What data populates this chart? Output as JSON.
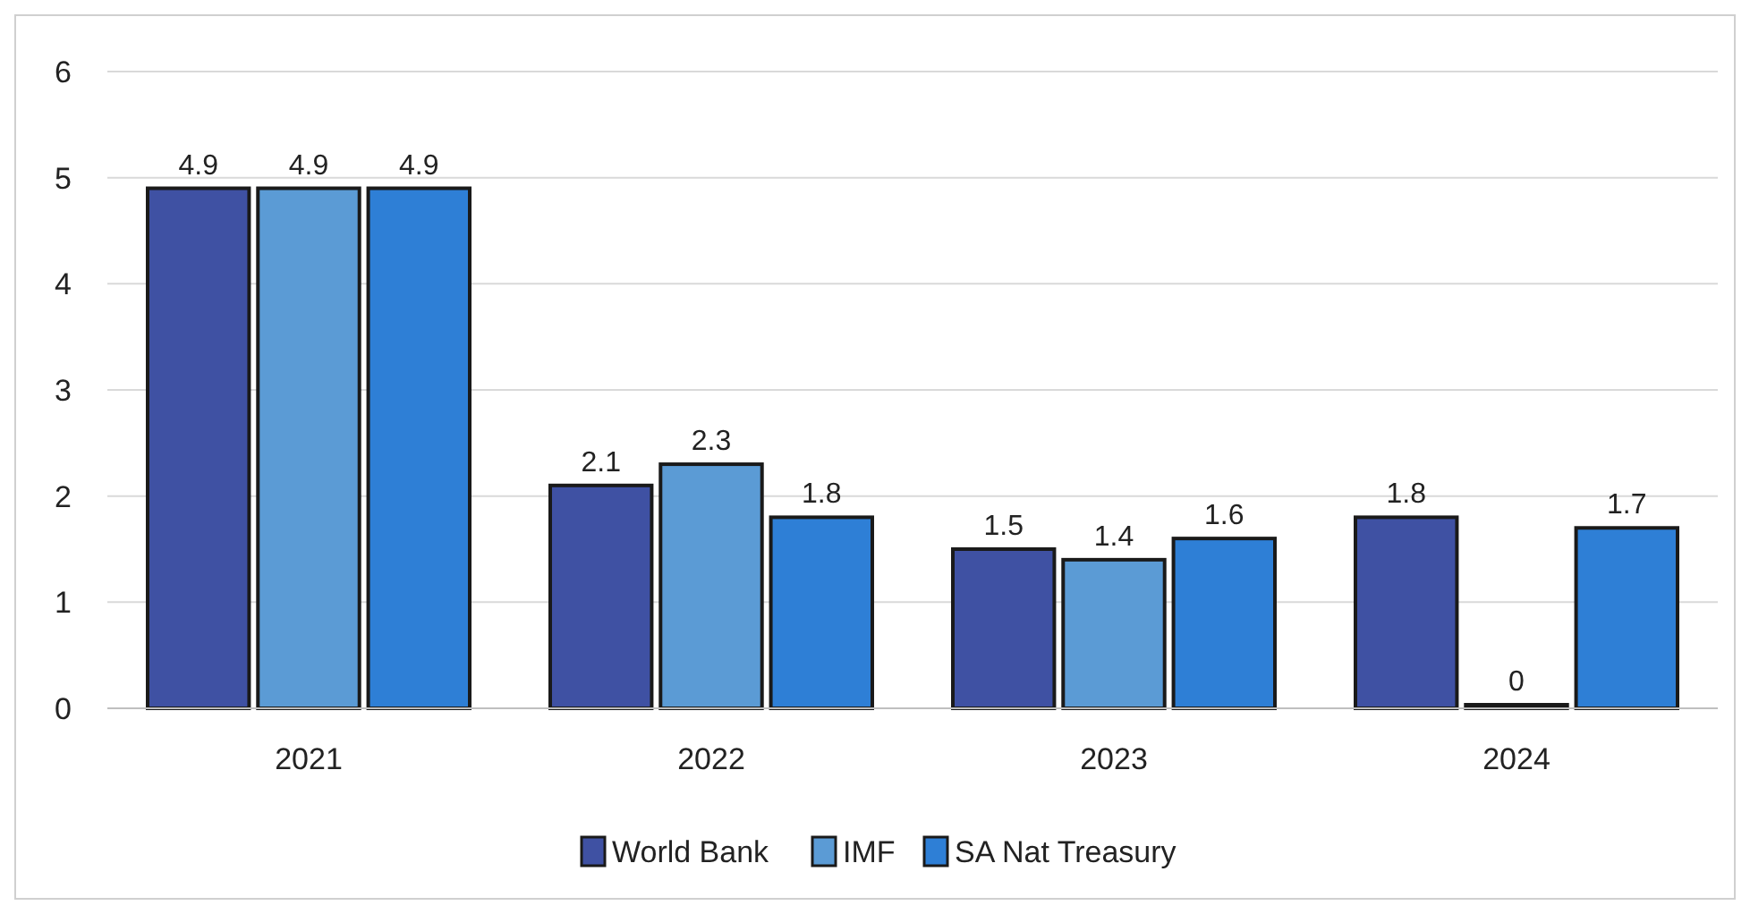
{
  "chart_data": {
    "type": "bar",
    "categories": [
      "2021",
      "2022",
      "2023",
      "2024"
    ],
    "series": [
      {
        "name": "World Bank",
        "color": "#3f51a3",
        "values": [
          4.9,
          2.1,
          1.5,
          1.8
        ]
      },
      {
        "name": "IMF",
        "color": "#5b9bd5",
        "values": [
          4.9,
          2.3,
          1.4,
          0
        ]
      },
      {
        "name": "SA Nat Treasury",
        "color": "#2e7fd6",
        "values": [
          4.9,
          1.8,
          1.6,
          1.7
        ]
      }
    ],
    "ylim": [
      0,
      6
    ],
    "yticks": [
      0,
      1,
      2,
      3,
      4,
      5,
      6
    ],
    "grid": "y",
    "legend": "bottom",
    "data_labels": true
  }
}
